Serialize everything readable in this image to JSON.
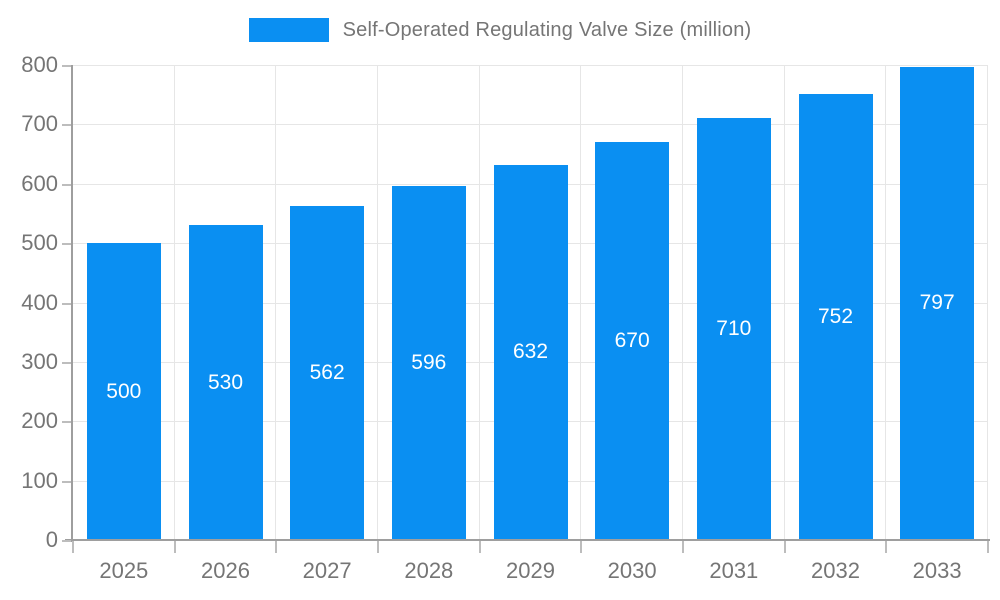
{
  "legend": {
    "label": "Self-Operated Regulating Valve Size (million)"
  },
  "chart_data": {
    "type": "bar",
    "title": "Self-Operated Regulating Valve Size (million)",
    "categories": [
      "2025",
      "2026",
      "2027",
      "2028",
      "2029",
      "2030",
      "2031",
      "2032",
      "2033"
    ],
    "series": [
      {
        "name": "Self-Operated Regulating Valve Size (million)",
        "values": [
          500,
          530,
          562,
          596,
          632,
          670,
          710,
          752,
          797
        ]
      }
    ],
    "xlabel": "",
    "ylabel": "",
    "ylim": [
      0,
      800
    ],
    "ytick_step": 100,
    "grid": true,
    "legend_position": "top",
    "data_labels": "inside-center",
    "colors": {
      "bar": "#0a8ff2",
      "data_label": "#ffffff",
      "axis_line": "#9e9e9e",
      "tick": "#bdbdbd",
      "gridline": "#e6e6e6",
      "tick_label": "#757575",
      "legend_text": "#757575"
    }
  }
}
